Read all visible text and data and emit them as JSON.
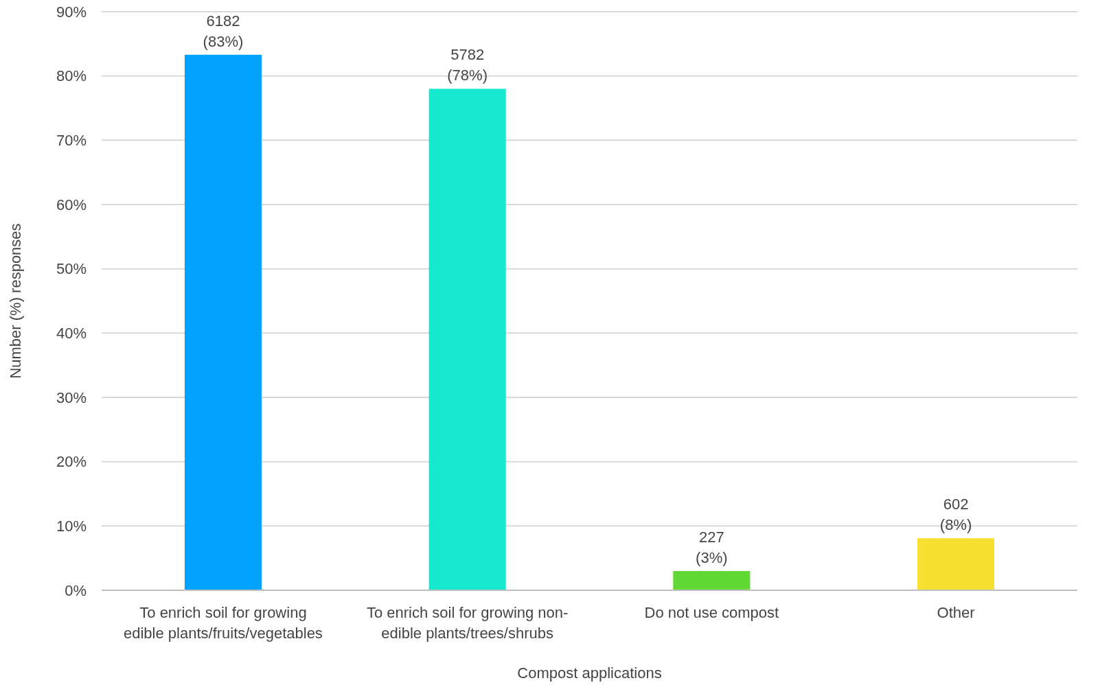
{
  "chart_data": {
    "type": "bar",
    "xlabel": "Compost applications",
    "ylabel": "Number (%) responses",
    "categories": [
      "To enrich soil for growing edible plants/fruits/vegetables",
      "To enrich soil for growing non-edible plants/trees/shrubs",
      "Do not use compost",
      "Other"
    ],
    "values": [
      83.3,
      78,
      3,
      8.1
    ],
    "value_labels": [
      "6182 (83%)",
      "5782 (78%)",
      "227 (3%)",
      "602 (8%)"
    ],
    "colors": [
      "#00a2ff",
      "#16e7cf",
      "#61d836",
      "#f8e033"
    ],
    "ylim": [
      0,
      90
    ],
    "yticks": [
      {
        "value": 0,
        "label": "0%"
      },
      {
        "value": 10,
        "label": "10%"
      },
      {
        "value": 20,
        "label": "20%"
      },
      {
        "value": 30,
        "label": "30%"
      },
      {
        "value": 40,
        "label": "40%"
      },
      {
        "value": 50,
        "label": "50%"
      },
      {
        "value": 60,
        "label": "60%"
      },
      {
        "value": 70,
        "label": "70%"
      },
      {
        "value": 80,
        "label": "80%"
      },
      {
        "value": 90,
        "label": "90%"
      }
    ],
    "grid": "y"
  }
}
